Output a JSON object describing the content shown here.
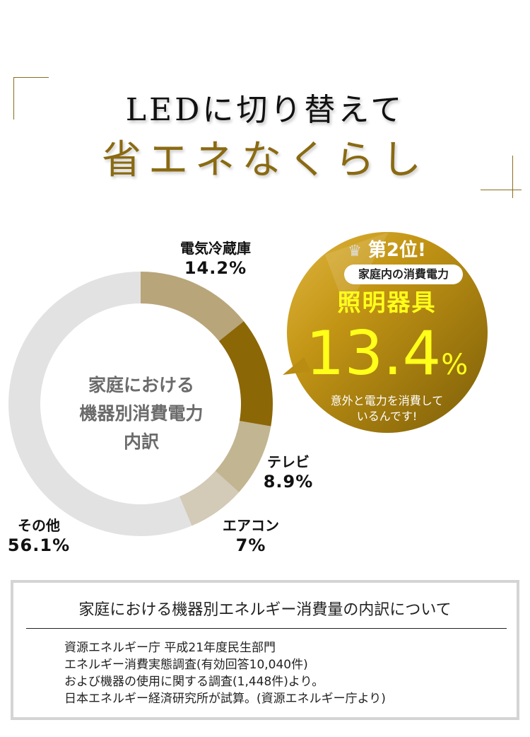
{
  "header": {
    "line1": "LEDに切り替えて",
    "line2": "省エネなくらし"
  },
  "chart_data": {
    "type": "pie",
    "variant": "donut",
    "center_label": [
      "家庭における",
      "機器別消費電力",
      "内訳"
    ],
    "categories": [
      "電気冷蔵庫",
      "照明器具",
      "テレビ",
      "エアコン",
      "その他"
    ],
    "values": [
      14.2,
      13.4,
      8.9,
      7,
      56.1
    ],
    "value_labels": [
      "14.2%",
      "",
      "8.9%",
      "7%",
      "56.1%"
    ],
    "colors": [
      "#b9a57a",
      "#8c6706",
      "#c2b591",
      "#d3cab7",
      "#e2e2e2"
    ],
    "unit": "%"
  },
  "callout": {
    "rank": "第2位!",
    "subtitle": "家庭内の消費電力",
    "category": "照明器具",
    "value": "13.4",
    "unit": "%",
    "message": [
      "意外と電力を消費して",
      "いるんです!"
    ],
    "icon": "crown-icon"
  },
  "note": {
    "title": "家庭における機器別エネルギー消費量の内訳について",
    "lines": [
      "資源エネルギー庁 平成21年度民生部門",
      "エネルギー消費実態調査(有効回答10,040件)",
      "および機器の使用に関する調査(1,448件)より。",
      "日本エネルギー経済研究所が試算。(資源エネルギー庁より)"
    ]
  }
}
